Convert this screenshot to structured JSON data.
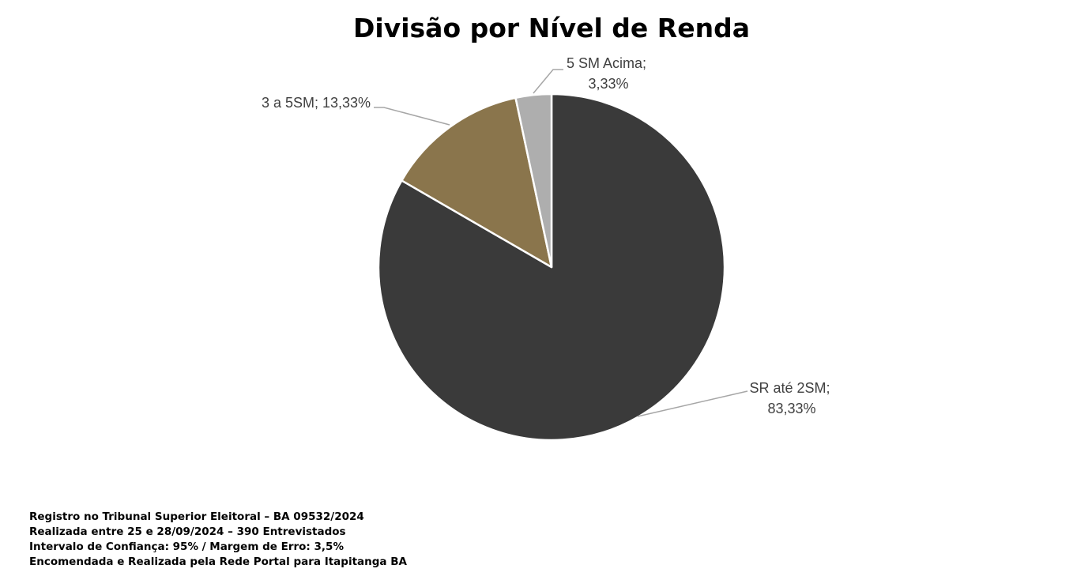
{
  "chart_data": {
    "type": "pie",
    "title": "Divisão por Nível de Renda",
    "slices": [
      {
        "label": "SR até 2SM",
        "value": 83.33,
        "display": "83,33%",
        "color": "#3a3a3a"
      },
      {
        "label": "3 a 5SM",
        "value": 13.33,
        "display": "13,33%",
        "color": "#8a754c"
      },
      {
        "label": "5 SM Acima",
        "value": 3.33,
        "display": "3,33%",
        "color": "#aeaeae"
      }
    ],
    "start_angle_deg": 0,
    "direction": "clockwise",
    "labels": {
      "slice_0_line1": "SR até 2SM;",
      "slice_0_line2": "83,33%",
      "slice_1_line1": "3 a 5SM; 13,33%",
      "slice_2_line1": "5 SM Acima;",
      "slice_2_line2": "3,33%"
    }
  },
  "footer": {
    "line1": "Registro no Tribunal Superior Eleitoral – BA 09532/2024",
    "line2": "Realizada entre 25 e 28/09/2024 – 390 Entrevistados",
    "line3": "Intervalo de Confiança: 95% / Margem de Erro: 3,5%",
    "line4": "Encomendada e Realizada pela Rede Portal para Itapitanga BA"
  },
  "colors": {
    "leader_line": "#a6a6a6",
    "label_text": "#404040"
  }
}
